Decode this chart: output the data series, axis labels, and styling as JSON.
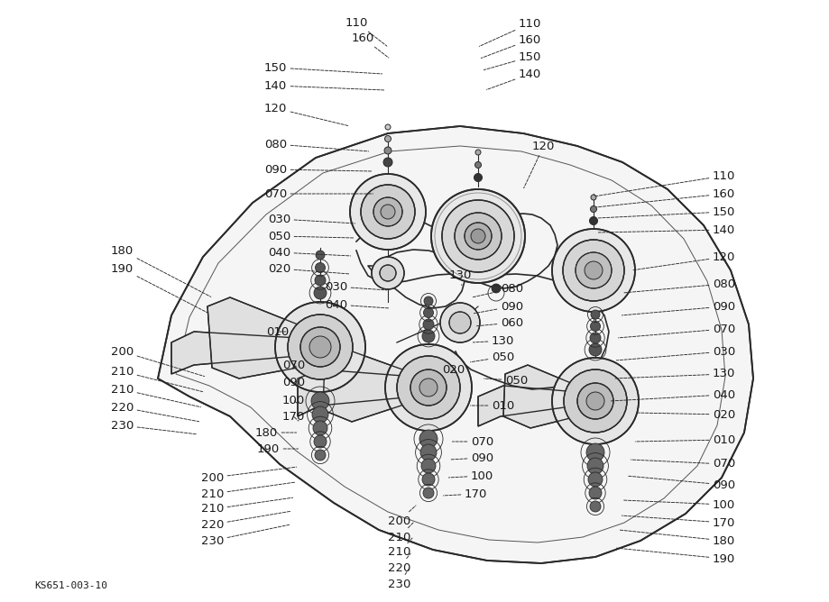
{
  "diagram_code": "KS651-003-10",
  "background_color": "#ffffff",
  "line_color": "#2a2a2a",
  "text_color": "#1a1a1a",
  "figsize": [
    9.19,
    6.68
  ],
  "dpi": 100,
  "font_size_label": 9.5,
  "font_size_code": 8.0
}
